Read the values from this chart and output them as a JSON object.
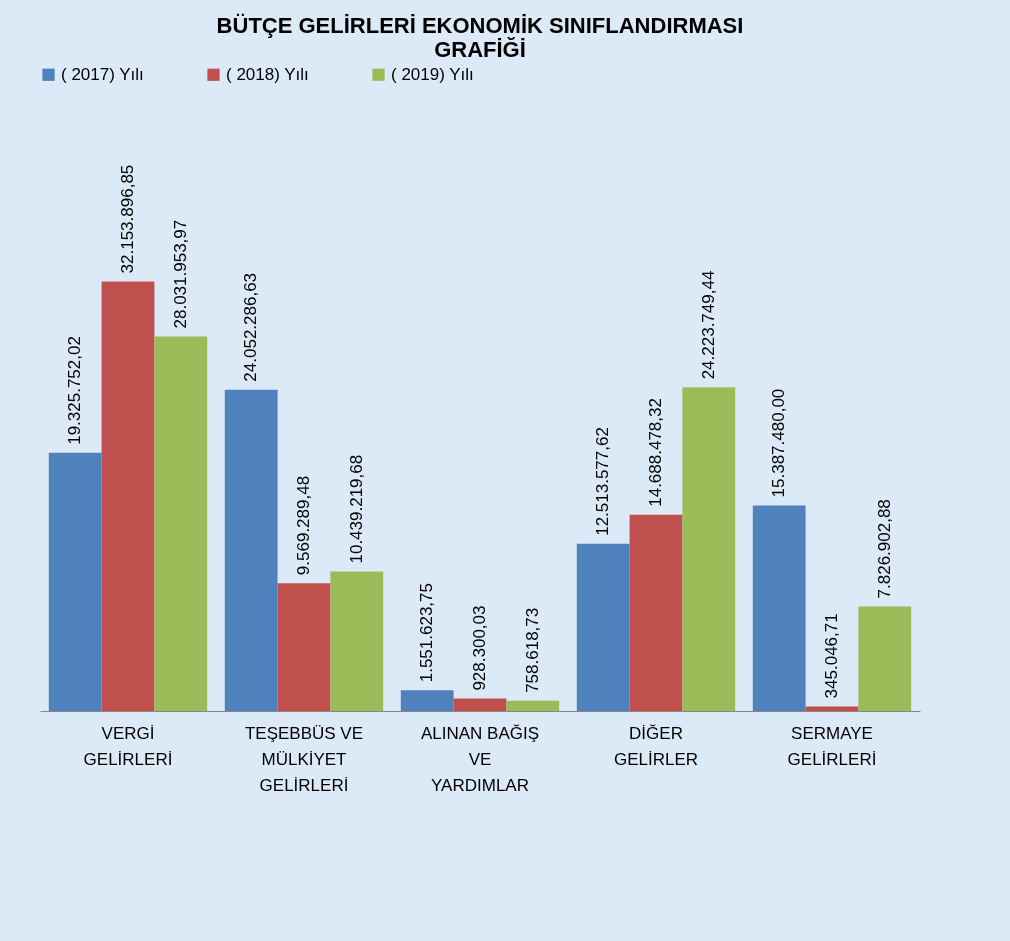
{
  "chart_data": {
    "type": "bar",
    "title": "BÜTÇE GELİRLERİ EKONOMİK SINIFLANDIRMASI\nGRAFİĞİ",
    "categories": [
      "VERGİ\nGELİRLERİ",
      "TEŞEBBÜS VE\nMÜLKİYET\nGELİRLERİ",
      "ALINAN BAĞIŞ\nVE\nYARDIMLAR",
      "DİĞER\nGELİRLER",
      "SERMAYE\nGELİRLERİ"
    ],
    "series": [
      {
        "name": "( 2017) Yılı",
        "color": "#4f81bd",
        "values": [
          19325752.02,
          24052286.63,
          1551623.75,
          12513577.62,
          15387480.0
        ],
        "value_labels": [
          "19.325.752,02",
          "24.052.286,63",
          "1.551.623,75",
          "12.513.577,62",
          "15.387.480,00"
        ]
      },
      {
        "name": "( 2018) Yılı",
        "color": "#c0504d",
        "values": [
          32153896.85,
          9569289.48,
          928300.03,
          14688478.32,
          345046.71
        ],
        "value_labels": [
          "32.153.896,85",
          "9.569.289,48",
          "928.300,03",
          "14.688.478,32",
          "345.046,71"
        ]
      },
      {
        "name": "( 2019) Yılı",
        "color": "#9bbb59",
        "values": [
          28031953.97,
          10439219.68,
          758618.73,
          24223749.44,
          7826902.88
        ],
        "value_labels": [
          "28.031.953,97",
          "10.439.219,68",
          "758.618,73",
          "24.223.749,44",
          "7.826.902,88"
        ]
      }
    ],
    "legend": "top",
    "grid": false
  }
}
